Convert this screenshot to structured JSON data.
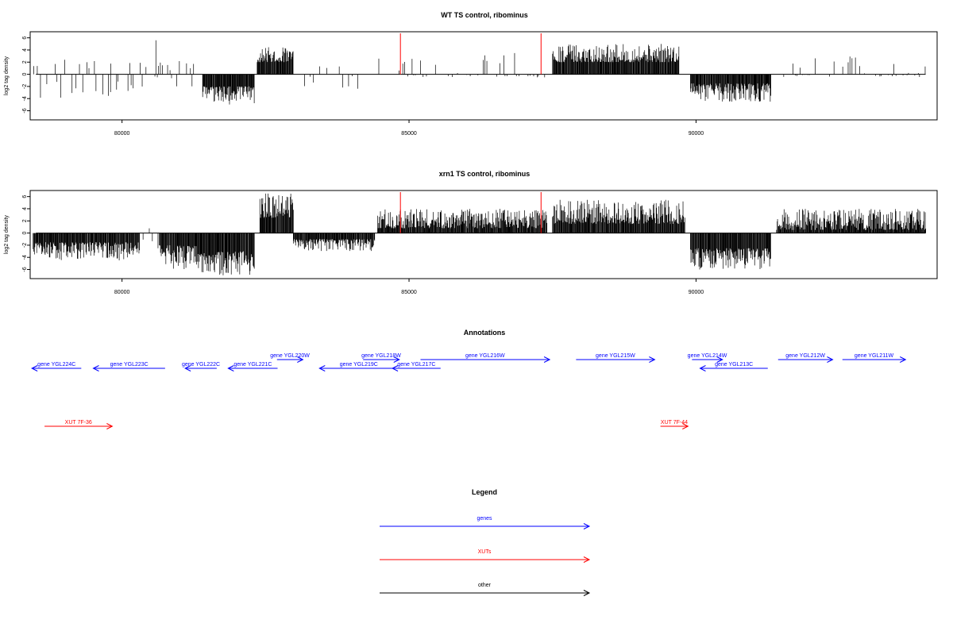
{
  "colors": {
    "genes": "#0000ff",
    "xuts": "#ff0000",
    "other": "#000000",
    "marker": "#ff0000",
    "bars": "#000000"
  },
  "chart_data": [
    {
      "type": "bar",
      "title": "WT TS control, ribominus",
      "ylabel": "log2 tag density",
      "xlim": [
        78400,
        94200
      ],
      "ylim": [
        -7.5,
        7
      ],
      "x_ticks": [
        "80000",
        "85000",
        "90000"
      ],
      "y_ticks": [
        "6",
        "4",
        "2",
        "0",
        "-2",
        "-4",
        "-6"
      ],
      "marker_positions": [
        84850,
        87300
      ],
      "segments": [
        {
          "x0": 78450,
          "x1": 79800,
          "mode": "sparse",
          "lo": -4,
          "hi": 2.5
        },
        {
          "x0": 79800,
          "x1": 80600,
          "mode": "sparse",
          "lo": -3,
          "hi": 2
        },
        {
          "x0": 80570,
          "x1": 80610,
          "mode": "single",
          "value": 5.6
        },
        {
          "x0": 80600,
          "x1": 81400,
          "mode": "sparse",
          "lo": -2,
          "hi": 2.5
        },
        {
          "x0": 81400,
          "x1": 82300,
          "mode": "neg",
          "lo": -5,
          "hi": -2
        },
        {
          "x0": 82350,
          "x1": 82980,
          "mode": "pos",
          "lo": 2,
          "hi": 4.5
        },
        {
          "x0": 82980,
          "x1": 84300,
          "mode": "sparse",
          "lo": -2.5,
          "hi": 2
        },
        {
          "x0": 84400,
          "x1": 86900,
          "mode": "sparse",
          "lo": -0.5,
          "hi": 3.5
        },
        {
          "x0": 86900,
          "x1": 87400,
          "mode": "sparse",
          "lo": -0.5,
          "hi": 4.5
        },
        {
          "x0": 87500,
          "x1": 89700,
          "mode": "pos",
          "lo": 2,
          "hi": 5
        },
        {
          "x0": 89900,
          "x1": 91300,
          "mode": "neg",
          "lo": -4.5,
          "hi": -1.5
        },
        {
          "x0": 91300,
          "x1": 94000,
          "mode": "sparse",
          "lo": -0.5,
          "hi": 3
        }
      ]
    },
    {
      "type": "bar",
      "title": "xrn1 TS control, ribominus",
      "ylabel": "log2 tag density",
      "xlim": [
        78400,
        94200
      ],
      "ylim": [
        -7.5,
        7
      ],
      "x_ticks": [
        "80000",
        "85000",
        "90000"
      ],
      "y_ticks": [
        "6",
        "4",
        "2",
        "0",
        "-2",
        "-4",
        "-6"
      ],
      "marker_positions": [
        84850,
        87300
      ],
      "segments": [
        {
          "x0": 78450,
          "x1": 80300,
          "mode": "neg",
          "lo": -4.5,
          "hi": -1.5
        },
        {
          "x0": 80300,
          "x1": 80650,
          "mode": "sparse",
          "lo": -3,
          "hi": 4
        },
        {
          "x0": 80650,
          "x1": 81300,
          "mode": "neg",
          "lo": -6,
          "hi": -2
        },
        {
          "x0": 81300,
          "x1": 82300,
          "mode": "neg",
          "lo": -7,
          "hi": -3
        },
        {
          "x0": 82400,
          "x1": 82980,
          "mode": "pos",
          "lo": 2.5,
          "hi": 6.5
        },
        {
          "x0": 82980,
          "x1": 84400,
          "mode": "neg",
          "lo": -3,
          "hi": -1
        },
        {
          "x0": 84450,
          "x1": 87400,
          "mode": "pos",
          "lo": 0.8,
          "hi": 4
        },
        {
          "x0": 87500,
          "x1": 89800,
          "mode": "pos",
          "lo": 1.5,
          "hi": 5.5
        },
        {
          "x0": 89900,
          "x1": 91300,
          "mode": "neg",
          "lo": -6,
          "hi": -2.5
        },
        {
          "x0": 91400,
          "x1": 94000,
          "mode": "pos",
          "lo": 0.5,
          "hi": 4
        }
      ]
    }
  ],
  "annotations": {
    "title": "Annotations",
    "features": [
      {
        "label": "gene YGL224C",
        "kind": "gene",
        "dir": "rev",
        "x0": 78430,
        "x1": 79290,
        "row": 0
      },
      {
        "label": "gene YGL223C",
        "kind": "gene",
        "dir": "rev",
        "x0": 79500,
        "x1": 80750,
        "row": 0
      },
      {
        "label": "gene YGL222C",
        "kind": "gene",
        "dir": "rev",
        "x0": 81100,
        "x1": 81650,
        "row": 0
      },
      {
        "label": "gene YGL221C",
        "kind": "gene",
        "dir": "rev",
        "x0": 81850,
        "x1": 82710,
        "row": 0
      },
      {
        "label": "gene YGL220W",
        "kind": "gene",
        "dir": "fwd",
        "x0": 82700,
        "x1": 83150,
        "row": 1
      },
      {
        "label": "gene YGL219C",
        "kind": "gene",
        "dir": "rev",
        "x0": 83440,
        "x1": 84810,
        "row": 0
      },
      {
        "label": "gene YGL218W",
        "kind": "gene",
        "dir": "fwd",
        "x0": 84200,
        "x1": 84830,
        "row": 1
      },
      {
        "label": "gene YGL217C",
        "kind": "gene",
        "dir": "rev",
        "x0": 84710,
        "x1": 85550,
        "row": 0
      },
      {
        "label": "gene YGL216W",
        "kind": "gene",
        "dir": "fwd",
        "x0": 85200,
        "x1": 87450,
        "row": 1
      },
      {
        "label": "gene YGL215W",
        "kind": "gene",
        "dir": "fwd",
        "x0": 87910,
        "x1": 89280,
        "row": 1
      },
      {
        "label": "gene YGL214W",
        "kind": "gene",
        "dir": "fwd",
        "x0": 89930,
        "x1": 90460,
        "row": 1
      },
      {
        "label": "gene YGL213C",
        "kind": "gene",
        "dir": "rev",
        "x0": 90070,
        "x1": 91250,
        "row": 0
      },
      {
        "label": "gene YGL212W",
        "kind": "gene",
        "dir": "fwd",
        "x0": 91430,
        "x1": 92380,
        "row": 1
      },
      {
        "label": "gene YGL211W",
        "kind": "gene",
        "dir": "fwd",
        "x0": 92550,
        "x1": 93650,
        "row": 1
      },
      {
        "label": "XUT 7F-36",
        "kind": "xut",
        "dir": "fwd",
        "x0": 78650,
        "x1": 79830,
        "row": 2
      },
      {
        "label": "XUT 7F-44",
        "kind": "xut",
        "dir": "fwd",
        "x0": 89380,
        "x1": 89860,
        "row": 2
      }
    ]
  },
  "legend": {
    "title": "Legend",
    "items": [
      {
        "label": "genes",
        "kind": "gene"
      },
      {
        "label": "XUTs",
        "kind": "xut"
      },
      {
        "label": "other",
        "kind": "other"
      }
    ]
  }
}
